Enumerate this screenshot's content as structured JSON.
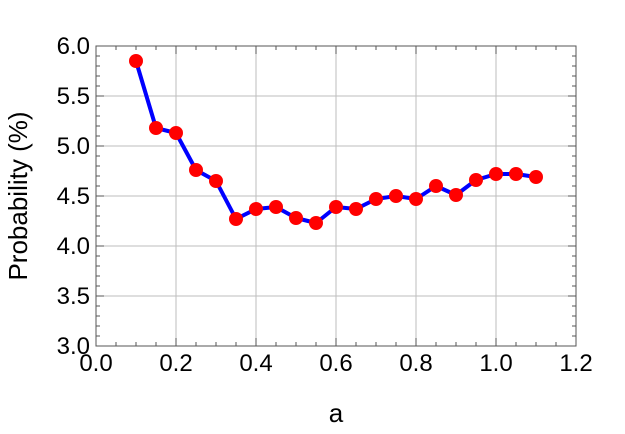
{
  "chart_data": {
    "type": "line",
    "title": "",
    "xlabel": "a",
    "ylabel": "Probability (%)",
    "xlim": [
      0.0,
      1.2
    ],
    "ylim": [
      3.0,
      6.0
    ],
    "x_ticks": [
      0.0,
      0.2,
      0.4,
      0.6,
      0.8,
      1.0,
      1.2
    ],
    "x_tick_labels": [
      "0.0",
      "0.2",
      "0.4",
      "0.6",
      "0.8",
      "1.0",
      "1.2"
    ],
    "y_ticks": [
      3.0,
      3.5,
      4.0,
      4.5,
      5.0,
      5.5,
      6.0
    ],
    "y_tick_labels": [
      "3.0",
      "3.5",
      "4.0",
      "4.5",
      "5.0",
      "5.5",
      "6.0"
    ],
    "grid": true,
    "series": [
      {
        "line_color": "#0000ff",
        "marker_color": "#ff0000",
        "x": [
          0.1,
          0.15,
          0.2,
          0.25,
          0.3,
          0.35,
          0.4,
          0.45,
          0.5,
          0.55,
          0.6,
          0.65,
          0.7,
          0.75,
          0.8,
          0.85,
          0.9,
          0.95,
          1.0,
          1.05,
          1.1
        ],
        "y": [
          5.85,
          5.18,
          5.13,
          4.76,
          4.65,
          4.27,
          4.37,
          4.39,
          4.28,
          4.23,
          4.39,
          4.37,
          4.47,
          4.5,
          4.47,
          4.6,
          4.51,
          4.66,
          4.72,
          4.72,
          4.69
        ]
      }
    ]
  }
}
